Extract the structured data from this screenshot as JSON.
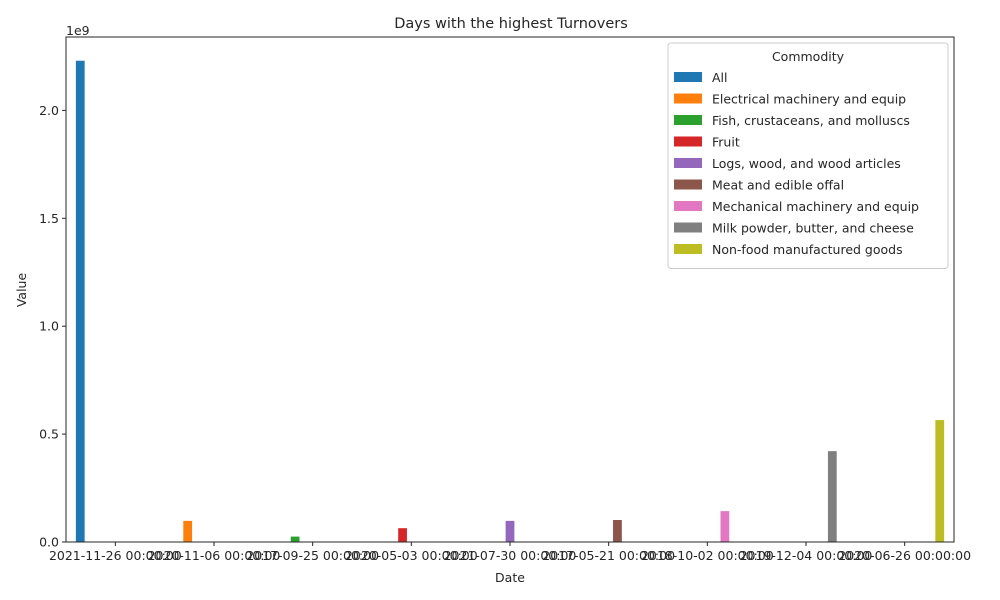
{
  "chart_data": {
    "type": "bar",
    "title": "Days with the highest Turnovers",
    "xlabel": "Date",
    "ylabel": "Value",
    "y_scale_label": "1e9",
    "ylim": [
      0,
      2340000000
    ],
    "y_ticks": [
      0,
      500000000,
      1000000000,
      1500000000,
      2000000000
    ],
    "y_tick_labels": [
      "0.0",
      "0.5",
      "1.0",
      "1.5",
      "2.0"
    ],
    "categories": [
      "2021-11-26 00:00:00",
      "2020-11-06 00:00:00",
      "2017-09-25 00:00:00",
      "2020-05-03 00:00:00",
      "2021-07-30 00:00:00",
      "2017-05-21 00:00:00",
      "2018-10-02 00:00:00",
      "2019-12-04 00:00:00",
      "2020-06-26 00:00:00"
    ],
    "legend_title": "Commodity",
    "legend_position": "top-right",
    "series": [
      {
        "name": "All",
        "color": "#1f77b4",
        "category_index": 0,
        "value": 2230000000
      },
      {
        "name": "Electrical machinery and equip",
        "color": "#ff7f0e",
        "category_index": 1,
        "value": 98000000
      },
      {
        "name": "Fish, crustaceans, and molluscs",
        "color": "#2ca02c",
        "category_index": 2,
        "value": 25000000
      },
      {
        "name": "Fruit",
        "color": "#d62728",
        "category_index": 3,
        "value": 64000000
      },
      {
        "name": "Logs, wood, and wood articles",
        "color": "#9467bd",
        "category_index": 4,
        "value": 98000000
      },
      {
        "name": "Meat and edible offal",
        "color": "#8c564b",
        "category_index": 5,
        "value": 102000000
      },
      {
        "name": "Mechanical machinery and equip",
        "color": "#e377c2",
        "category_index": 6,
        "value": 143000000
      },
      {
        "name": "Milk powder, butter, and cheese",
        "color": "#7f7f7f",
        "category_index": 7,
        "value": 421000000
      },
      {
        "name": "Non-food manufactured goods",
        "color": "#bcbd22",
        "category_index": 8,
        "value": 565000000
      }
    ],
    "grid": false
  }
}
